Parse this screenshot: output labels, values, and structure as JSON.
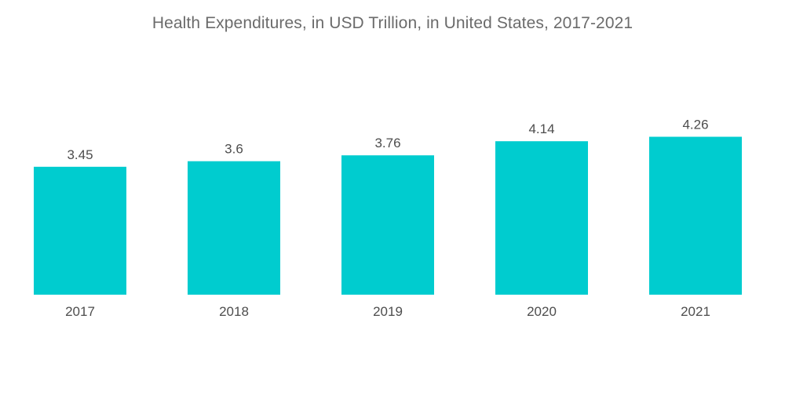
{
  "chart_data": {
    "type": "bar",
    "title": "Health Expenditures, in USD Trillion, in United States, 2017-2021",
    "categories": [
      "2017",
      "2018",
      "2019",
      "2020",
      "2021"
    ],
    "values": [
      3.45,
      3.6,
      3.76,
      4.14,
      4.26
    ],
    "value_labels": [
      "3.45",
      "3.6",
      "3.76",
      "4.14",
      "4.26"
    ],
    "xlabel": "",
    "ylabel": "",
    "grid": false,
    "legend": "none",
    "bar_color": "#00CCCF",
    "text_color": "#4d4d4d",
    "title_color": "#6b6b6b"
  }
}
